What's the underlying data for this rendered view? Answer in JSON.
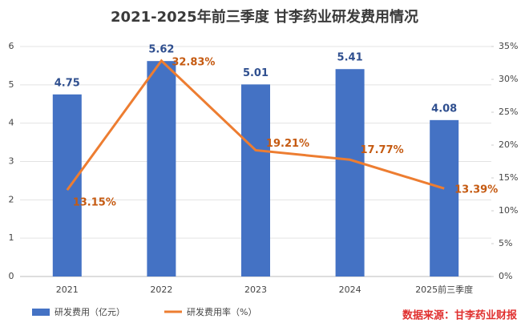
{
  "chart_data": {
    "type": "bar+line",
    "title": "2021-2025年前三季度 甘李药业研发费用情况",
    "categories": [
      "2021",
      "2022",
      "2023",
      "2024",
      "2025前三季度"
    ],
    "series": [
      {
        "name": "研发费用（亿元）",
        "type": "bar",
        "color": "#4472c4",
        "values": [
          4.75,
          5.62,
          5.01,
          5.41,
          4.08
        ]
      },
      {
        "name": "研发费用率（%）",
        "type": "line",
        "axis": "y2",
        "color": "#ed7d31",
        "values": [
          13.15,
          32.83,
          19.21,
          17.77,
          13.39
        ],
        "value_labels": [
          "13.15%",
          "32.83%",
          "19.21%",
          "17.77%",
          "13.39%"
        ]
      }
    ],
    "ylim": [
      0,
      6
    ],
    "yticks": [
      0,
      1,
      2,
      3,
      4,
      5,
      6
    ],
    "y2lim": [
      0,
      35
    ],
    "y2ticks": [
      {
        "value": 0,
        "label": "0%"
      },
      {
        "value": 5,
        "label": "5%"
      },
      {
        "value": 10,
        "label": "10%"
      },
      {
        "value": 15,
        "label": "15%"
      },
      {
        "value": 20,
        "label": "20%"
      },
      {
        "value": 25,
        "label": "25%"
      },
      {
        "value": 30,
        "label": "30%"
      },
      {
        "value": 35,
        "label": "35%"
      }
    ],
    "grid": true,
    "legend": "bottom-left",
    "source": "数据来源：甘李药业财报"
  }
}
